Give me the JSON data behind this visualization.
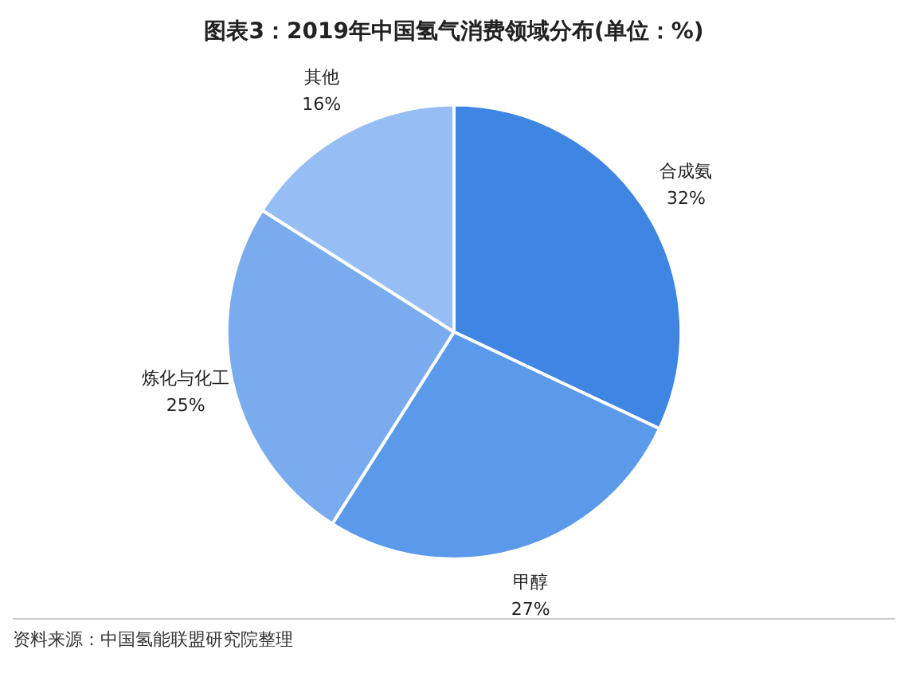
{
  "chart_data": {
    "type": "pie",
    "title": "图表3：2019年中国氢气消费领域分布(单位：%)",
    "categories": [
      "合成氨",
      "甲醇",
      "炼化与化工",
      "其他"
    ],
    "values": [
      32,
      27,
      25,
      16
    ],
    "value_labels": [
      "32%",
      "27%",
      "25%",
      "16%"
    ],
    "colors": [
      "#3f86e3",
      "#5b99ea",
      "#79abee",
      "#97bef4"
    ],
    "legend": false,
    "annotations": [
      "资料来源：中国氢能联盟研究院整理"
    ]
  }
}
